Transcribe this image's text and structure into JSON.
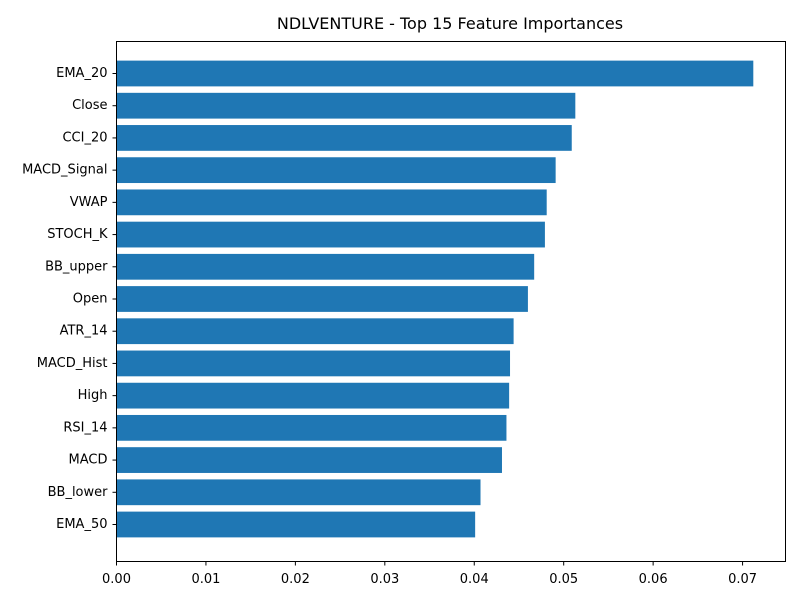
{
  "chart_data": {
    "type": "bar",
    "orientation": "horizontal",
    "title": "NDLVENTURE - Top 15 Feature Importances",
    "xlabel": "",
    "ylabel": "",
    "categories": [
      "EMA_20",
      "Close",
      "CCI_20",
      "MACD_Signal",
      "VWAP",
      "STOCH_K",
      "BB_upper",
      "Open",
      "ATR_14",
      "MACD_Hist",
      "High",
      "RSI_14",
      "MACD",
      "BB_lower",
      "EMA_50"
    ],
    "values": [
      0.0712,
      0.0513,
      0.0509,
      0.0491,
      0.0481,
      0.0479,
      0.0467,
      0.046,
      0.0444,
      0.044,
      0.0439,
      0.0436,
      0.0431,
      0.0407,
      0.0401
    ],
    "xlim": [
      0,
      0.0748
    ],
    "xticks": [
      "0.00",
      "0.01",
      "0.02",
      "0.03",
      "0.04",
      "0.05",
      "0.06",
      "0.07"
    ],
    "grid": false,
    "legend": "none",
    "bar_color": "#1f77b4"
  }
}
